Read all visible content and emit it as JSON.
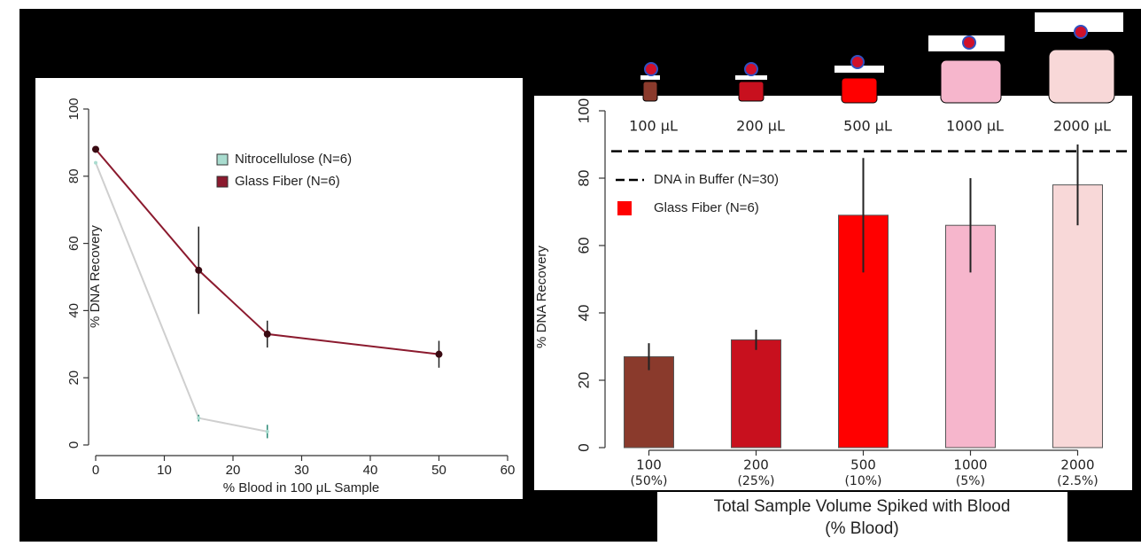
{
  "chart_data": [
    {
      "type": "line",
      "ylabel": "% DNA Recovery",
      "xlabel": "% Blood in 100 μL Sample",
      "xlim": [
        0,
        60
      ],
      "xticks": [
        0,
        10,
        20,
        30,
        40,
        50,
        60
      ],
      "ylim": [
        0,
        100
      ],
      "yticks": [
        0,
        20,
        40,
        60,
        80,
        100
      ],
      "series": [
        {
          "name": "Nitrocellulose (N=6)",
          "color": "#a9dccf",
          "line_color": "#cfcfcf",
          "x": [
            0,
            15,
            25
          ],
          "values": [
            84,
            8,
            4
          ],
          "errors": [
            null,
            1,
            2
          ]
        },
        {
          "name": "Glass Fiber (N=6)",
          "color": "#8b1a2e",
          "line_color": "#8b1a2e",
          "x": [
            0,
            15,
            25,
            50
          ],
          "values": [
            88,
            52,
            33,
            27
          ],
          "errors": [
            null,
            13,
            4,
            4
          ]
        }
      ]
    },
    {
      "type": "bar",
      "ylabel": "% DNA Recovery",
      "xlabel": [
        "Total Sample Volume Spiked with Blood",
        "(% Blood)"
      ],
      "categories": [
        "100",
        "200",
        "500",
        "1000",
        "2000"
      ],
      "category_notes": [
        "(50%)",
        "(25%)",
        "(10%)",
        "(5%)",
        "(2.5%)"
      ],
      "tube_labels": [
        "100 μL",
        "200 μL",
        "500 μL",
        "1000 μL",
        "2000 μL"
      ],
      "ylim": [
        0,
        100
      ],
      "yticks": [
        0,
        20,
        40,
        60,
        80,
        100
      ],
      "values": [
        27,
        32,
        69,
        66,
        78
      ],
      "errors": [
        4,
        3,
        17,
        14,
        12
      ],
      "colors": [
        "#8a3a2c",
        "#c8101e",
        "#ff0000",
        "#f6b6cc",
        "#f8d8d8"
      ],
      "reference": {
        "name": "DNA in Buffer (N=30)",
        "value": 88
      },
      "legend_name": "Glass Fiber (N=6)",
      "legend_color": "#ff0000"
    }
  ]
}
